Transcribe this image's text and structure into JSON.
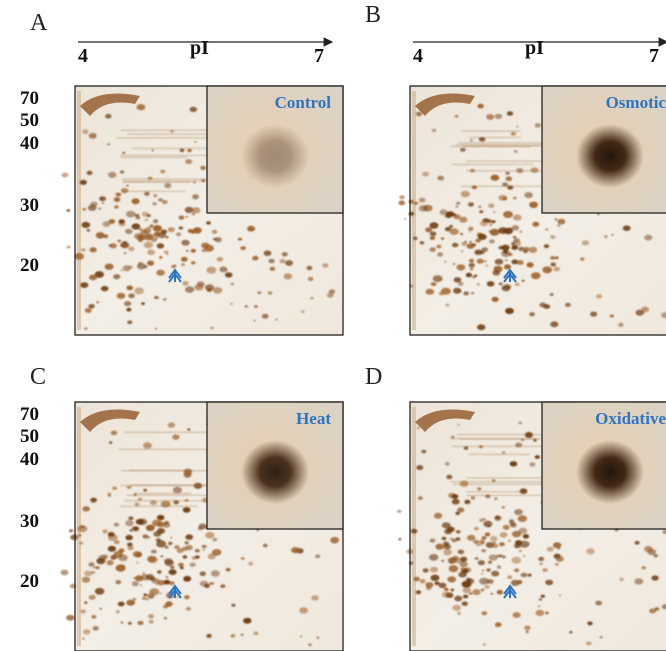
{
  "panels": [
    {
      "letter": "A",
      "axis": {
        "left": "4",
        "label": "pI",
        "right": "7"
      },
      "mw": [
        "70",
        "50",
        "40",
        "30",
        "20"
      ],
      "inset": "Control"
    },
    {
      "letter": "B",
      "axis": {
        "left": "4",
        "label": "pI",
        "right": "7"
      },
      "inset": "Osmotic"
    },
    {
      "letter": "C",
      "mw": [
        "70",
        "50",
        "40",
        "30",
        "20"
      ],
      "inset": "Heat"
    },
    {
      "letter": "D",
      "inset": "Oxidative"
    }
  ]
}
